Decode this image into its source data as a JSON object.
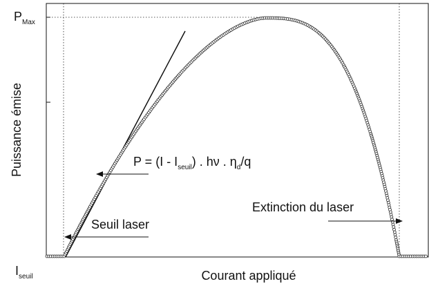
{
  "labels": {
    "p_max": [
      "P",
      "Max"
    ],
    "i_seuil": [
      "I",
      "seuil"
    ],
    "y_axis": "Puissance émise",
    "x_axis": "Courant appliqué"
  },
  "annotations": {
    "formula": [
      "P = (I - I",
      "seuil",
      ") . hν . η",
      "d",
      "/q"
    ],
    "threshold": "Seuil laser",
    "extinction": "Extinction du laser"
  }
}
